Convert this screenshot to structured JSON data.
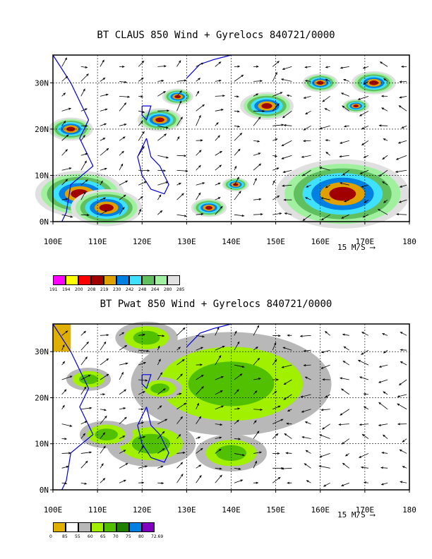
{
  "chart_data": [
    {
      "type": "map",
      "title": "BT CLAUS 850 Wind + Gyrelocs 840721/0000",
      "x_ticks": [
        "100E",
        "110E",
        "120E",
        "130E",
        "140E",
        "150E",
        "160E",
        "170E",
        "180"
      ],
      "y_ticks": [
        "0N",
        "10N",
        "20N",
        "30N"
      ],
      "xlim": [
        100,
        180
      ],
      "ylim": [
        0,
        36
      ],
      "grid": true,
      "vector_scale": "15 M/S",
      "legend": {
        "labels": [
          "191",
          "194",
          "200",
          "208",
          "219",
          "230",
          "242",
          "248",
          "264",
          "280",
          "285"
        ],
        "colors": [
          "#ff00ff",
          "#ffff00",
          "#ff0000",
          "#a00000",
          "#e0a000",
          "#0080e0",
          "#40e0ff",
          "#60c060",
          "#a0f0a0",
          "#e0e0e0"
        ]
      }
    },
    {
      "type": "map",
      "title": "BT Pwat 850 Wind + Gyrelocs 840721/0000",
      "x_ticks": [
        "100E",
        "110E",
        "120E",
        "130E",
        "140E",
        "150E",
        "160E",
        "170E",
        "180"
      ],
      "y_ticks": [
        "0N",
        "10N",
        "20N",
        "30N"
      ],
      "xlim": [
        100,
        180
      ],
      "ylim": [
        0,
        36
      ],
      "grid": true,
      "vector_scale": "15 M/S",
      "legend": {
        "labels": [
          "0",
          "85",
          "55",
          "60",
          "65",
          "70",
          "75",
          "80",
          "72.69"
        ],
        "colors": [
          "#e0b000",
          "#ffffff",
          "#b8b8b8",
          "#a0f000",
          "#50c000",
          "#208000",
          "#0080e0",
          "#8000c0"
        ]
      }
    }
  ]
}
